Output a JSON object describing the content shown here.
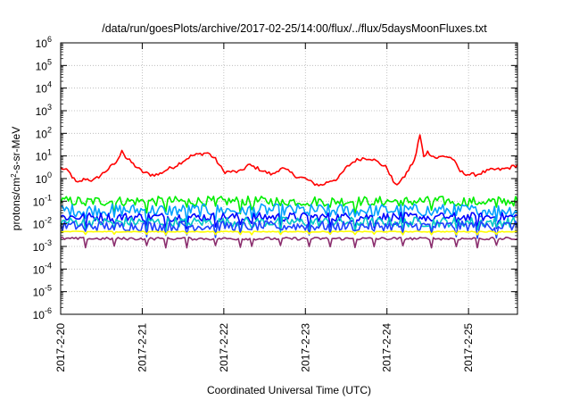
{
  "chart_data": {
    "type": "line",
    "title": "/data/run/goesPlots/archive/2017-02-25/14:00/flux/../flux/5daysMoonFluxes.txt",
    "xlabel": "Coordinated Universal Time (UTC)",
    "ylabel_parts": {
      "pre": "protons/cm",
      "sup": "2",
      "post": "-s-sr-MeV"
    },
    "y_scale": "log",
    "ylim": [
      1e-06,
      1000000.0
    ],
    "y_tick_labels": [
      {
        "base": "10",
        "exp": "-6",
        "value": 1e-06
      },
      {
        "base": "10",
        "exp": "-5",
        "value": 1e-05
      },
      {
        "base": "10",
        "exp": "-4",
        "value": 0.0001
      },
      {
        "base": "10",
        "exp": "-3",
        "value": 0.001
      },
      {
        "base": "10",
        "exp": "-2",
        "value": 0.01
      },
      {
        "base": "10",
        "exp": "-1",
        "value": 0.1
      },
      {
        "base": "10",
        "exp": "0",
        "value": 1
      },
      {
        "base": "10",
        "exp": "1",
        "value": 10
      },
      {
        "base": "10",
        "exp": "2",
        "value": 100
      },
      {
        "base": "10",
        "exp": "3",
        "value": 1000
      },
      {
        "base": "10",
        "exp": "4",
        "value": 10000
      },
      {
        "base": "10",
        "exp": "5",
        "value": 100000
      },
      {
        "base": "10",
        "exp": "6",
        "value": 1000000
      }
    ],
    "x_ticks": [
      "2017-2-20",
      "2017-2-21",
      "2017-2-22",
      "2017-2-23",
      "2017-2-24",
      "2017-2-25"
    ],
    "x_range_days": [
      0,
      5.6
    ],
    "grid": true,
    "series": [
      {
        "color": "#ff0000",
        "noise": 0.08,
        "x": [
          0,
          0.1,
          0.2,
          0.3,
          0.4,
          0.5,
          0.6,
          0.7,
          0.75,
          0.8,
          0.85,
          0.9,
          1.0,
          1.1,
          1.2,
          1.3,
          1.4,
          1.5,
          1.6,
          1.7,
          1.8,
          1.85,
          1.9,
          2.0,
          2.1,
          2.2,
          2.3,
          2.4,
          2.5,
          2.6,
          2.7,
          2.8,
          2.9,
          3.0,
          3.1,
          3.2,
          3.3,
          3.4,
          3.5,
          3.6,
          3.7,
          3.8,
          3.9,
          4.0,
          4.1,
          4.2,
          4.3,
          4.35,
          4.4,
          4.45,
          4.5,
          4.6,
          4.7,
          4.8,
          4.9,
          5.0,
          5.1,
          5.2,
          5.3,
          5.4,
          5.5,
          5.6
        ],
        "y": [
          3,
          2,
          0.6,
          1,
          0.8,
          1.5,
          3,
          6,
          20,
          8,
          6,
          4,
          2,
          1.5,
          1.5,
          2.5,
          3.5,
          6,
          10,
          12,
          14,
          10,
          7,
          2,
          2,
          2,
          4,
          3,
          2,
          1.5,
          3,
          2,
          1.2,
          1,
          0.6,
          0.5,
          0.8,
          1,
          3,
          6,
          8,
          8,
          5,
          3,
          0.5,
          1,
          4,
          8,
          100,
          10,
          15,
          8,
          10,
          8,
          2,
          1.5,
          1.5,
          2,
          2.5,
          2.5,
          3,
          4
        ]
      },
      {
        "color": "#00ee00",
        "base": 0.1,
        "noise": 0.22
      },
      {
        "color": "#00a0ff",
        "base": 0.04,
        "noise": 0.28
      },
      {
        "color": "#0000ff",
        "base": 0.02,
        "noise": 0.2
      },
      {
        "color": "#00c8c8",
        "base": 0.012,
        "noise": 0.22
      },
      {
        "color": "#2040ff",
        "base": 0.008,
        "noise": 0.22
      },
      {
        "color": "#ffff00",
        "base": 0.0045,
        "noise": 0.02
      },
      {
        "color": "#8b2e6e",
        "base": 0.0022,
        "noise": 0.06
      }
    ]
  }
}
